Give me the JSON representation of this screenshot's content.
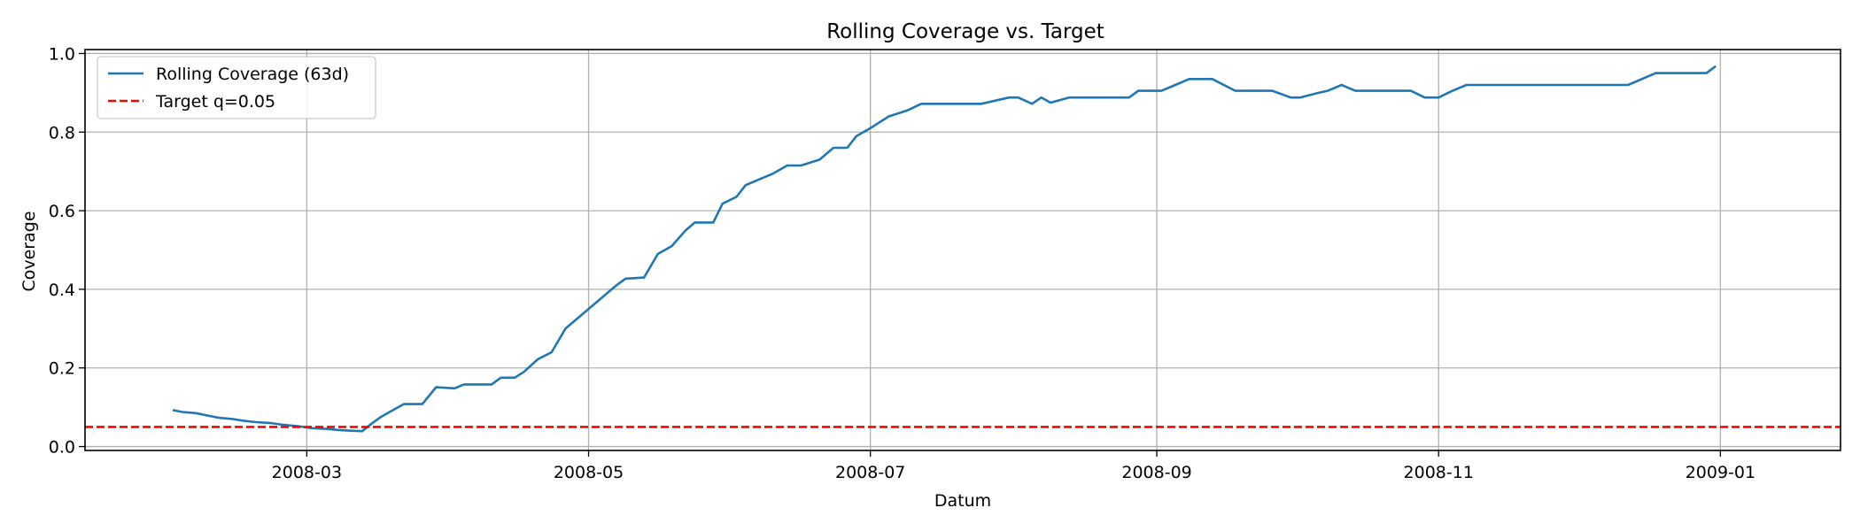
{
  "chart_data": {
    "type": "line",
    "title": "Rolling Coverage vs. Target",
    "xlabel": "Datum",
    "ylabel": "Coverage",
    "xlim": [
      "2008-01-13",
      "2009-01-27"
    ],
    "ylim": [
      -0.01,
      1.01
    ],
    "x_ticks": [
      "2008-03-01",
      "2008-05-01",
      "2008-07-01",
      "2008-09-01",
      "2008-11-01",
      "2009-01-01"
    ],
    "x_tick_labels": [
      "2008-03",
      "2008-05",
      "2008-07",
      "2008-09",
      "2008-11",
      "2009-01"
    ],
    "y_ticks": [
      0.0,
      0.2,
      0.4,
      0.6,
      0.8,
      1.0
    ],
    "y_tick_labels": [
      "0.0",
      "0.2",
      "0.4",
      "0.6",
      "0.8",
      "1.0"
    ],
    "grid": true,
    "legend_position": "top-left",
    "series": [
      {
        "name": "Rolling Coverage (63d)",
        "color": "#1f77b4",
        "style": "solid",
        "x": [
          "2008-02-01",
          "2008-02-03",
          "2008-02-06",
          "2008-02-08",
          "2008-02-11",
          "2008-02-14",
          "2008-02-16",
          "2008-02-19",
          "2008-02-22",
          "2008-02-25",
          "2008-02-28",
          "2008-03-02",
          "2008-03-05",
          "2008-03-08",
          "2008-03-11",
          "2008-03-13",
          "2008-03-15",
          "2008-03-17",
          "2008-03-20",
          "2008-03-22",
          "2008-03-26",
          "2008-03-29",
          "2008-04-02",
          "2008-04-04",
          "2008-04-08",
          "2008-04-10",
          "2008-04-12",
          "2008-04-15",
          "2008-04-17",
          "2008-04-20",
          "2008-04-23",
          "2008-04-26",
          "2008-04-28",
          "2008-05-01",
          "2008-05-04",
          "2008-05-07",
          "2008-05-09",
          "2008-05-13",
          "2008-05-16",
          "2008-05-19",
          "2008-05-22",
          "2008-05-24",
          "2008-05-28",
          "2008-05-30",
          "2008-06-02",
          "2008-06-04",
          "2008-06-07",
          "2008-06-10",
          "2008-06-13",
          "2008-06-16",
          "2008-06-20",
          "2008-06-23",
          "2008-06-26",
          "2008-06-28",
          "2008-07-01",
          "2008-07-05",
          "2008-07-09",
          "2008-07-12",
          "2008-07-18",
          "2008-07-25",
          "2008-07-31",
          "2008-08-02",
          "2008-08-05",
          "2008-08-07",
          "2008-08-09",
          "2008-08-13",
          "2008-08-20",
          "2008-08-26",
          "2008-08-28",
          "2008-09-02",
          "2008-09-05",
          "2008-09-08",
          "2008-09-13",
          "2008-09-18",
          "2008-09-21",
          "2008-09-26",
          "2008-09-30",
          "2008-10-02",
          "2008-10-06",
          "2008-10-08",
          "2008-10-11",
          "2008-10-14",
          "2008-10-18",
          "2008-10-22",
          "2008-10-26",
          "2008-10-29",
          "2008-11-01",
          "2008-11-04",
          "2008-11-07",
          "2008-11-15",
          "2008-11-25",
          "2008-12-05",
          "2008-12-12",
          "2008-12-15",
          "2008-12-18",
          "2008-12-22",
          "2008-12-26",
          "2008-12-29",
          "2008-12-31"
        ],
        "values": [
          0.093,
          0.088,
          0.085,
          0.08,
          0.073,
          0.07,
          0.066,
          0.062,
          0.06,
          0.055,
          0.052,
          0.047,
          0.045,
          0.042,
          0.04,
          0.039,
          0.058,
          0.075,
          0.095,
          0.108,
          0.108,
          0.151,
          0.148,
          0.158,
          0.158,
          0.158,
          0.175,
          0.175,
          0.19,
          0.222,
          0.24,
          0.3,
          0.32,
          0.35,
          0.38,
          0.41,
          0.427,
          0.43,
          0.49,
          0.51,
          0.55,
          0.57,
          0.57,
          0.618,
          0.635,
          0.665,
          0.68,
          0.695,
          0.715,
          0.715,
          0.73,
          0.76,
          0.76,
          0.79,
          0.81,
          0.84,
          0.855,
          0.872,
          0.872,
          0.872,
          0.888,
          0.888,
          0.872,
          0.888,
          0.875,
          0.888,
          0.888,
          0.888,
          0.905,
          0.905,
          0.92,
          0.935,
          0.935,
          0.905,
          0.905,
          0.905,
          0.888,
          0.888,
          0.9,
          0.905,
          0.92,
          0.905,
          0.905,
          0.905,
          0.905,
          0.888,
          0.888,
          0.905,
          0.92,
          0.92,
          0.92,
          0.92,
          0.92,
          0.935,
          0.95,
          0.95,
          0.95,
          0.95,
          0.968
        ]
      },
      {
        "name": "Target q=0.05",
        "color": "#ff0000",
        "style": "dashed",
        "x": [
          "2008-01-13",
          "2009-01-27"
        ],
        "values": [
          0.05,
          0.05
        ]
      }
    ]
  }
}
